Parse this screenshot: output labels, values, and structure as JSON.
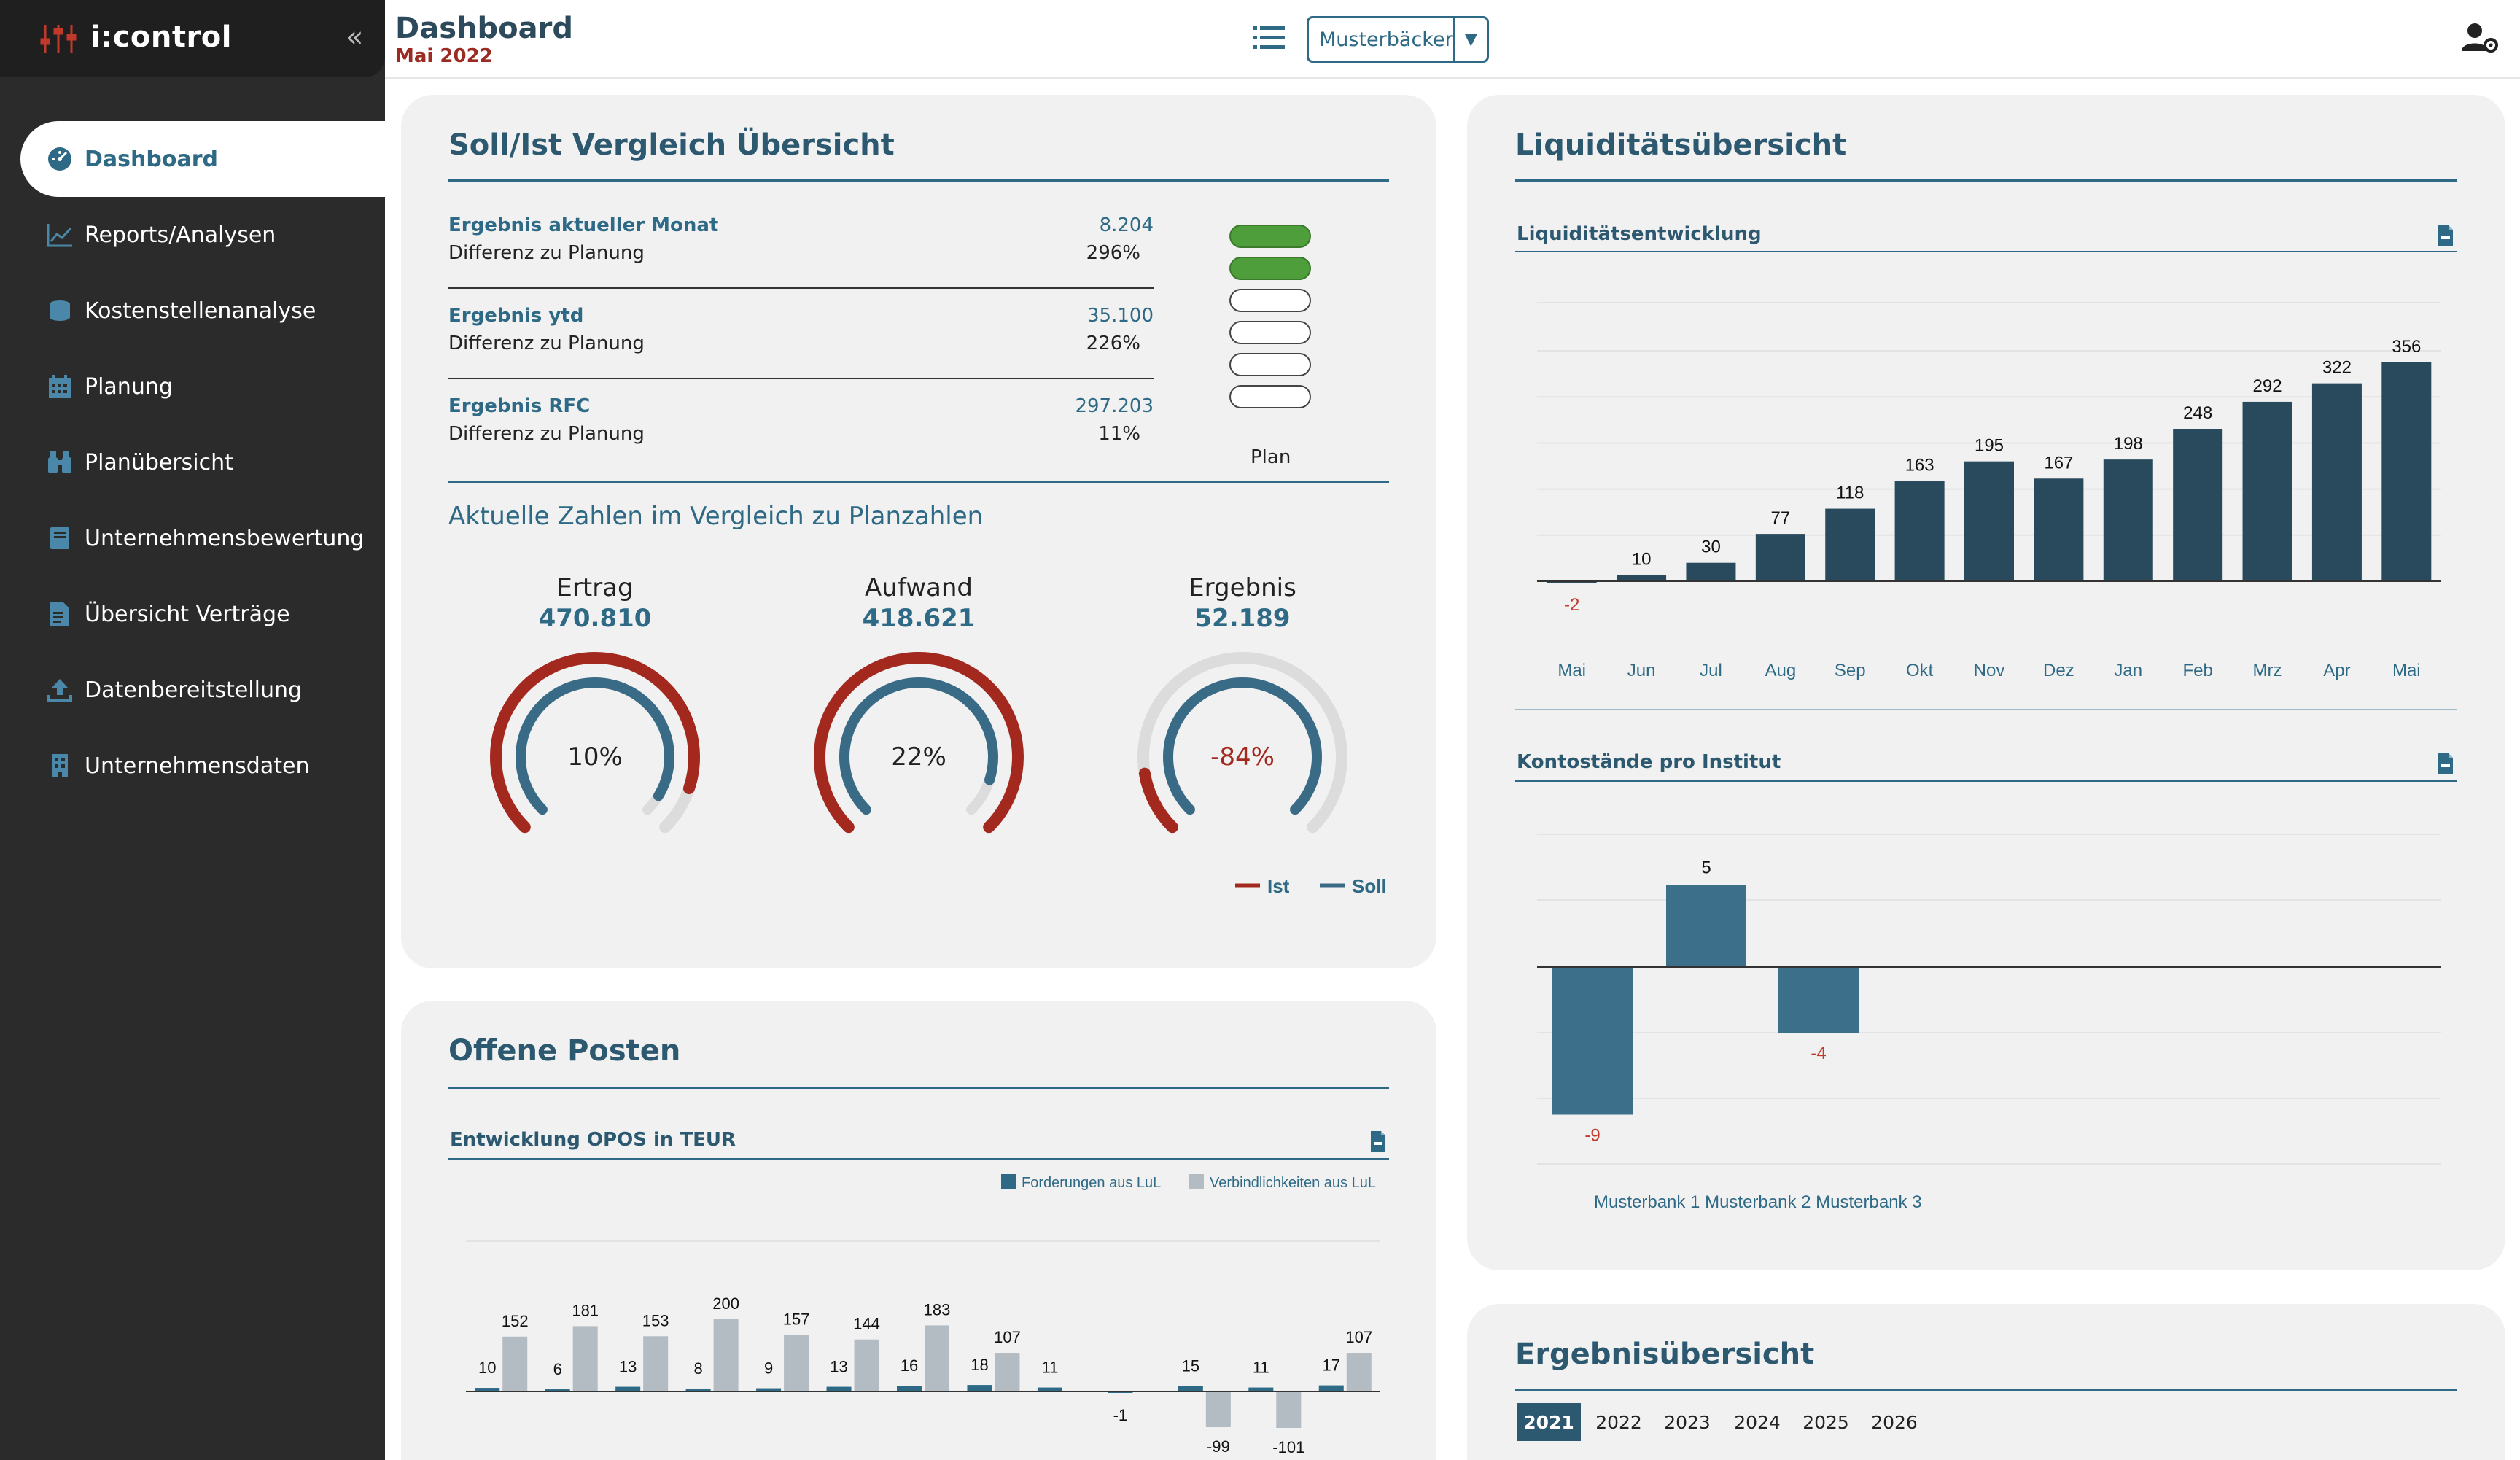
{
  "app": {
    "name": "i:control"
  },
  "sidebar": {
    "items": [
      {
        "label": "Dashboard",
        "icon": "dashboard-icon",
        "active": true
      },
      {
        "label": "Reports/Analysen",
        "icon": "chart-line-icon"
      },
      {
        "label": "Kostenstellenanalyse",
        "icon": "coins-icon"
      },
      {
        "label": "Planung",
        "icon": "calendar-icon"
      },
      {
        "label": "Planübersicht",
        "icon": "binoculars-icon"
      },
      {
        "label": "Unternehmensbewertung",
        "icon": "book-icon"
      },
      {
        "label": "Übersicht Verträge",
        "icon": "contract-icon"
      },
      {
        "label": "Datenbereitstellung",
        "icon": "upload-icon"
      },
      {
        "label": "Unternehmensdaten",
        "icon": "building-icon"
      }
    ]
  },
  "header": {
    "title": "Dashboard",
    "subtitle": "Mai 2022",
    "company": "Musterbäcker"
  },
  "soll_ist": {
    "title": "Soll/Ist Vergleich Übersicht",
    "rows": [
      {
        "label": "Ergebnis aktueller Monat",
        "sub": "Differenz zu Planung",
        "value": "8.204",
        "pct": "296%"
      },
      {
        "label": "Ergebnis ytd",
        "sub": "Differenz zu Planung",
        "value": "35.100",
        "pct": "226%"
      },
      {
        "label": "Ergebnis RFC",
        "sub": "Differenz zu Planung",
        "value": "297.203",
        "pct": "11%"
      }
    ],
    "plan_label": "Plan",
    "plan_filled": 2,
    "plan_total": 6,
    "compare_title": "Aktuelle Zahlen im Vergleich zu Planzahlen",
    "gauges": [
      {
        "title": "Ertrag",
        "value": "470.810",
        "center": "10%",
        "ist": 1.1,
        "soll": 0.95
      },
      {
        "title": "Aufwand",
        "value": "418.621",
        "center": "22%",
        "ist": 1.22,
        "soll": 0.9
      },
      {
        "title": "Ergebnis",
        "value": "52.189",
        "center": "-84%",
        "ist": 0.16,
        "soll": 1.0
      }
    ],
    "legend": {
      "ist": "Ist",
      "soll": "Soll"
    }
  },
  "liquiditaet": {
    "title": "Liquiditätsübersicht",
    "entwicklung_title": "Liquiditätsentwicklung",
    "konto_title": "Kontostände pro Institut"
  },
  "opos": {
    "title": "Offene Posten",
    "sub_title": "Entwicklung OPOS in TEUR"
  },
  "ergebnis": {
    "title": "Ergebnisübersicht",
    "years": [
      "2021",
      "2022",
      "2023",
      "2024",
      "2025",
      "2026"
    ],
    "active_year": "2021"
  },
  "colors": {
    "accent": "#2e6a86",
    "ist_red": "#a3291f",
    "soll_blue": "#3a6b86",
    "bar_dark": "#284a5c",
    "opos_gray": "#b3bcc3"
  },
  "chart_data": [
    {
      "type": "bar",
      "title": "Liquiditätsentwicklung",
      "categories": [
        "Mai",
        "Jun",
        "Jul",
        "Aug",
        "Sep",
        "Okt",
        "Nov",
        "Dez",
        "Jan",
        "Feb",
        "Mrz",
        "Apr",
        "Mai"
      ],
      "values": [
        -2,
        10,
        30,
        77,
        118,
        163,
        195,
        167,
        198,
        248,
        292,
        322,
        356
      ],
      "ylim": [
        -20,
        400
      ]
    },
    {
      "type": "bar",
      "title": "Kontostände pro Institut",
      "categories": [
        "Musterbank 1",
        "Musterbank 2",
        "Musterbank 3"
      ],
      "values": [
        -9,
        5,
        -4
      ],
      "ylim": [
        -12,
        8
      ]
    },
    {
      "type": "bar",
      "title": "Entwicklung OPOS in TEUR",
      "series": [
        {
          "name": "Forderungen aus LuL",
          "values": [
            10,
            6,
            13,
            8,
            9,
            13,
            16,
            18,
            11,
            -1,
            15,
            11,
            17
          ]
        },
        {
          "name": "Verbindlichkeiten aus LuL",
          "values": [
            152,
            181,
            153,
            200,
            157,
            144,
            183,
            107,
            null,
            null,
            -99,
            -101,
            107
          ]
        }
      ],
      "ylim": [
        -120,
        240
      ]
    }
  ]
}
